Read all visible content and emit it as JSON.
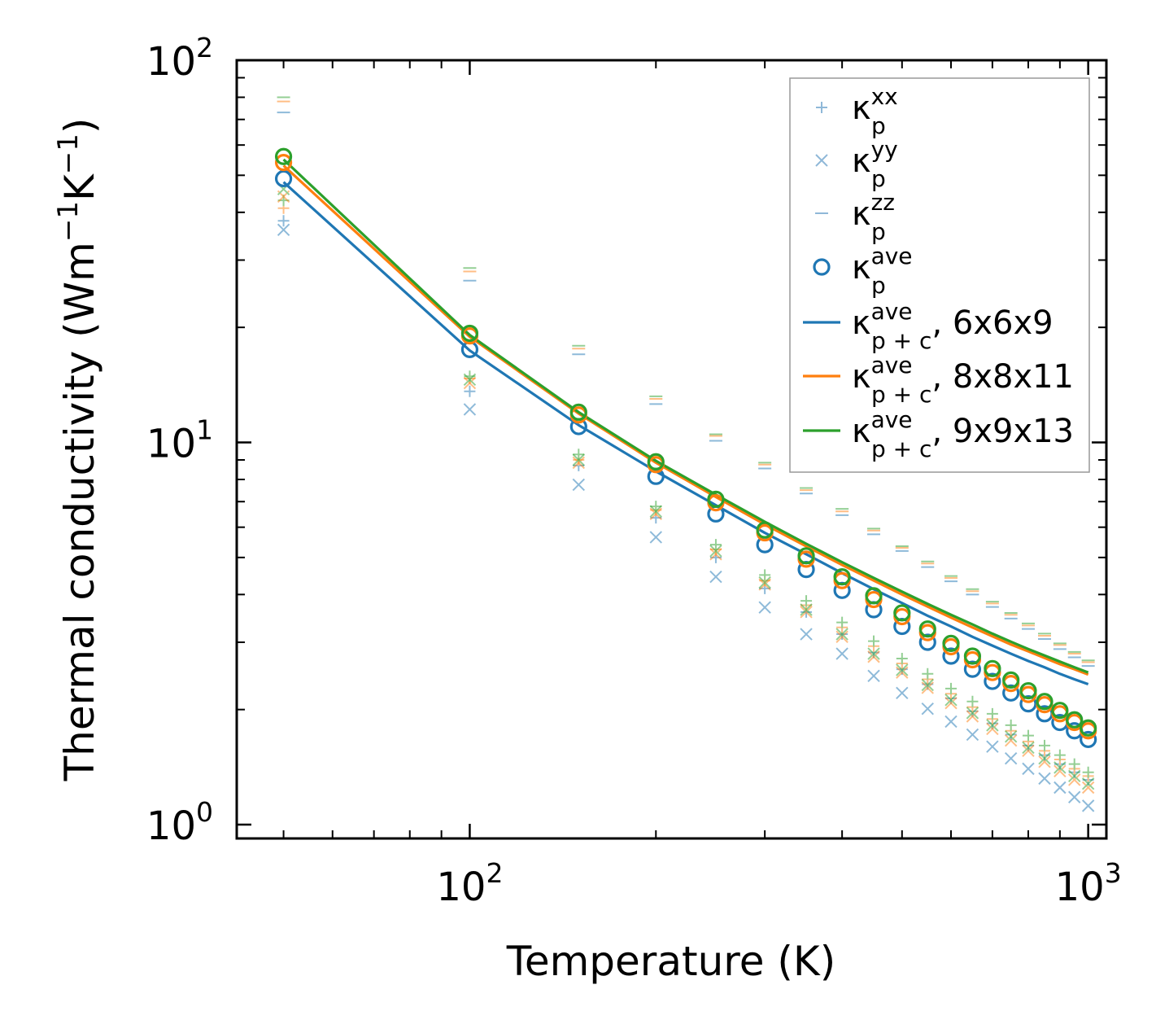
{
  "chart_data": {
    "type": "scatter",
    "title": "",
    "xlabel": "Temperature (K)",
    "ylabel_main": "Thermal conductivity (Wm",
    "ylabel_sup1": "−1",
    "ylabel_mid": "K",
    "ylabel_sup2": "−1",
    "ylabel_end": ")",
    "xscale": "log",
    "yscale": "log",
    "xlim": [
      42,
      1070
    ],
    "ylim": [
      0.92,
      100
    ],
    "x_ticks": [
      {
        "base": "10",
        "exp": "2",
        "value": 100
      },
      {
        "base": "10",
        "exp": "3",
        "value": 1000
      }
    ],
    "y_ticks": [
      {
        "base": "10",
        "exp": "0",
        "value": 1
      },
      {
        "base": "10",
        "exp": "1",
        "value": 10
      },
      {
        "base": "10",
        "exp": "2",
        "value": 100
      }
    ],
    "legend_location": "top-right",
    "colors": {
      "blue": "#1f77b4",
      "orange": "#ff7f0e",
      "green": "#2ca02c"
    },
    "legend": [
      {
        "symbol": "plus",
        "color": "#8fb8d8",
        "base": "κ",
        "sup": "xx",
        "sub": "p",
        "suffix": ""
      },
      {
        "symbol": "cross",
        "color": "#8fb8d8",
        "base": "κ",
        "sup": "yy",
        "sub": "p",
        "suffix": ""
      },
      {
        "symbol": "dash",
        "color": "#8fb8d8",
        "base": "κ",
        "sup": "zz",
        "sub": "p",
        "suffix": ""
      },
      {
        "symbol": "circle",
        "color": "#1f77b4",
        "base": "κ",
        "sup": "ave",
        "sub": "p",
        "suffix": ""
      },
      {
        "symbol": "line",
        "color": "#1f77b4",
        "base": "κ",
        "sup": "ave",
        "sub": "p + c",
        "suffix": ", 6x6x9"
      },
      {
        "symbol": "line",
        "color": "#ff7f0e",
        "base": "κ",
        "sup": "ave",
        "sub": "p + c",
        "suffix": ", 8x8x11"
      },
      {
        "symbol": "line",
        "color": "#2ca02c",
        "base": "κ",
        "sup": "ave",
        "sub": "p + c",
        "suffix": ", 9x9x13"
      }
    ],
    "x": [
      50,
      100,
      150,
      200,
      250,
      300,
      350,
      400,
      450,
      500,
      550,
      600,
      650,
      700,
      750,
      800,
      850,
      900,
      950,
      1000
    ],
    "series": [
      {
        "name": "6x6x9",
        "color": "#1f77b4",
        "kappa_p_xx": [
          38.0,
          13.6,
          8.7,
          6.35,
          5.0,
          4.15,
          3.6,
          3.15,
          2.82,
          2.55,
          2.33,
          2.14,
          1.98,
          1.84,
          1.72,
          1.61,
          1.52,
          1.44,
          1.37,
          1.31
        ],
        "kappa_p_yy": [
          36.0,
          12.2,
          7.75,
          5.65,
          4.45,
          3.7,
          3.15,
          2.8,
          2.45,
          2.21,
          2.01,
          1.86,
          1.72,
          1.6,
          1.49,
          1.4,
          1.32,
          1.25,
          1.18,
          1.12
        ],
        "kappa_p_zz": [
          73.0,
          26.5,
          17.0,
          12.6,
          10.1,
          8.55,
          7.35,
          6.45,
          5.75,
          5.2,
          4.72,
          4.33,
          4.0,
          3.71,
          3.46,
          3.25,
          3.06,
          2.88,
          2.74,
          2.6
        ],
        "kappa_p_ave": [
          49.0,
          17.5,
          11.0,
          8.15,
          6.5,
          5.4,
          4.65,
          4.1,
          3.65,
          3.3,
          3.0,
          2.76,
          2.55,
          2.37,
          2.21,
          2.07,
          1.95,
          1.85,
          1.76,
          1.67
        ],
        "kappa_pc_ave": [
          48.0,
          17.4,
          11.1,
          8.4,
          6.85,
          5.8,
          5.1,
          4.55,
          4.13,
          3.8,
          3.52,
          3.3,
          3.1,
          2.94,
          2.8,
          2.68,
          2.58,
          2.48,
          2.4,
          2.33
        ]
      },
      {
        "name": "8x8x11",
        "color": "#ff7f0e",
        "kappa_p_xx": [
          41.0,
          14.7,
          9.0,
          6.65,
          5.25,
          4.35,
          3.75,
          3.28,
          2.93,
          2.64,
          2.4,
          2.2,
          2.03,
          1.89,
          1.76,
          1.65,
          1.56,
          1.48,
          1.4,
          1.34
        ],
        "kappa_p_yy": [
          44.0,
          14.3,
          8.85,
          6.5,
          5.1,
          4.25,
          3.6,
          3.1,
          2.75,
          2.5,
          2.28,
          2.08,
          1.92,
          1.78,
          1.66,
          1.56,
          1.46,
          1.38,
          1.31,
          1.25
        ],
        "kappa_p_zz": [
          78.0,
          28.0,
          17.6,
          13.0,
          10.4,
          8.75,
          7.5,
          6.6,
          5.88,
          5.3,
          4.82,
          4.42,
          4.08,
          3.79,
          3.54,
          3.32,
          3.12,
          2.95,
          2.8,
          2.66
        ],
        "kappa_p_ave": [
          54.0,
          19.0,
          11.8,
          8.75,
          6.95,
          5.8,
          4.95,
          4.35,
          3.88,
          3.5,
          3.18,
          2.92,
          2.7,
          2.5,
          2.34,
          2.19,
          2.06,
          1.95,
          1.85,
          1.76
        ],
        "kappa_pc_ave": [
          53.0,
          18.9,
          11.9,
          8.85,
          7.2,
          6.1,
          5.35,
          4.78,
          4.35,
          4.0,
          3.72,
          3.48,
          3.28,
          3.11,
          2.96,
          2.84,
          2.73,
          2.63,
          2.55,
          2.47
        ]
      },
      {
        "name": "9x9x13",
        "color": "#2ca02c",
        "kappa_p_xx": [
          43.0,
          14.9,
          9.3,
          6.8,
          5.4,
          4.5,
          3.85,
          3.38,
          3.02,
          2.72,
          2.48,
          2.27,
          2.1,
          1.95,
          1.82,
          1.71,
          1.61,
          1.52,
          1.44,
          1.37
        ],
        "kappa_p_yy": [
          46.0,
          14.6,
          9.0,
          6.6,
          5.2,
          4.3,
          3.65,
          3.15,
          2.8,
          2.54,
          2.32,
          2.12,
          1.96,
          1.82,
          1.7,
          1.59,
          1.49,
          1.41,
          1.34,
          1.28
        ],
        "kappa_p_zz": [
          80.0,
          28.6,
          17.9,
          13.2,
          10.5,
          8.85,
          7.6,
          6.7,
          5.95,
          5.35,
          4.88,
          4.47,
          4.13,
          3.83,
          3.58,
          3.36,
          3.16,
          2.98,
          2.83,
          2.69
        ],
        "kappa_p_ave": [
          56.0,
          19.3,
          12.0,
          8.9,
          7.1,
          5.9,
          5.05,
          4.45,
          3.97,
          3.58,
          3.25,
          2.98,
          2.76,
          2.56,
          2.39,
          2.24,
          2.1,
          1.99,
          1.88,
          1.79
        ],
        "kappa_pc_ave": [
          55.0,
          19.1,
          12.0,
          8.95,
          7.3,
          6.2,
          5.43,
          4.86,
          4.42,
          4.07,
          3.78,
          3.54,
          3.34,
          3.16,
          3.01,
          2.88,
          2.77,
          2.67,
          2.58,
          2.5
        ]
      }
    ]
  }
}
